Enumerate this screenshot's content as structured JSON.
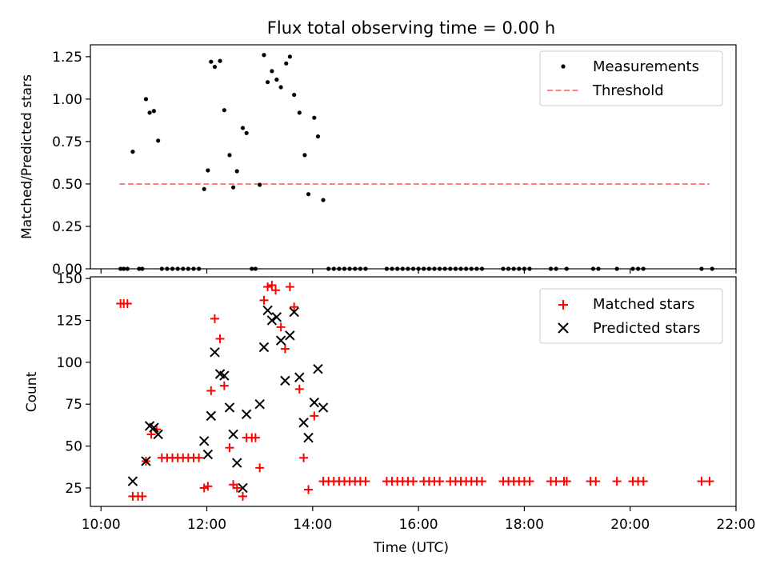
{
  "title": "Flux total observing time = 0.00 h",
  "chart_data": [
    {
      "type": "scatter",
      "panel": "top",
      "title": "Flux total observing time = 0.00 h",
      "xlabel": "",
      "ylabel": "Matched/Predicted stars",
      "x_unit": "time-of-day hours (UTC)",
      "xlim": [
        9.8,
        22.0
      ],
      "ylim": [
        0,
        1.32
      ],
      "yticks": [
        0.0,
        0.25,
        0.5,
        0.75,
        1.0,
        1.25
      ],
      "ytick_labels": [
        "0.00",
        "0.25",
        "0.50",
        "0.75",
        "1.00",
        "1.25"
      ],
      "legend_position": "top-right",
      "series": [
        {
          "name": "Measurements",
          "marker": "dot",
          "color": "#000000",
          "points": [
            [
              10.37,
              0
            ],
            [
              10.43,
              0
            ],
            [
              10.5,
              0
            ],
            [
              10.6,
              0.69
            ],
            [
              10.72,
              0
            ],
            [
              10.78,
              0
            ],
            [
              10.85,
              1.0
            ],
            [
              10.92,
              0.92
            ],
            [
              11.0,
              0.93
            ],
            [
              11.08,
              0.755
            ],
            [
              11.15,
              0
            ],
            [
              11.25,
              0
            ],
            [
              11.35,
              0
            ],
            [
              11.45,
              0
            ],
            [
              11.55,
              0
            ],
            [
              11.65,
              0
            ],
            [
              11.75,
              0
            ],
            [
              11.85,
              0
            ],
            [
              11.95,
              0.47
            ],
            [
              12.02,
              0.58
            ],
            [
              12.08,
              1.22
            ],
            [
              12.15,
              1.19
            ],
            [
              12.25,
              1.225
            ],
            [
              12.33,
              0.935
            ],
            [
              12.43,
              0.67
            ],
            [
              12.5,
              0.48
            ],
            [
              12.57,
              0.575
            ],
            [
              12.68,
              0.83
            ],
            [
              12.75,
              0.8
            ],
            [
              12.85,
              0
            ],
            [
              12.92,
              0
            ],
            [
              13.0,
              0.495
            ],
            [
              13.08,
              1.26
            ],
            [
              13.15,
              1.1
            ],
            [
              13.23,
              1.165
            ],
            [
              13.32,
              1.115
            ],
            [
              13.4,
              1.07
            ],
            [
              13.5,
              1.21
            ],
            [
              13.57,
              1.25
            ],
            [
              13.65,
              1.025
            ],
            [
              13.75,
              0.92
            ],
            [
              13.85,
              0.67
            ],
            [
              13.92,
              0.44
            ],
            [
              14.03,
              0.89
            ],
            [
              14.1,
              0.78
            ],
            [
              14.2,
              0.405
            ],
            [
              14.3,
              0
            ],
            [
              14.4,
              0
            ],
            [
              14.5,
              0
            ],
            [
              14.6,
              0
            ],
            [
              14.7,
              0
            ],
            [
              14.8,
              0
            ],
            [
              14.9,
              0
            ],
            [
              15.0,
              0
            ],
            [
              15.4,
              0
            ],
            [
              15.5,
              0
            ],
            [
              15.6,
              0
            ],
            [
              15.7,
              0
            ],
            [
              15.8,
              0
            ],
            [
              15.9,
              0
            ],
            [
              16.0,
              0
            ],
            [
              16.1,
              0
            ],
            [
              16.2,
              0
            ],
            [
              16.3,
              0
            ],
            [
              16.4,
              0
            ],
            [
              16.5,
              0
            ],
            [
              16.6,
              0
            ],
            [
              16.7,
              0
            ],
            [
              16.8,
              0
            ],
            [
              16.9,
              0
            ],
            [
              17.0,
              0
            ],
            [
              17.1,
              0
            ],
            [
              17.2,
              0
            ],
            [
              17.6,
              0
            ],
            [
              17.7,
              0
            ],
            [
              17.8,
              0
            ],
            [
              17.9,
              0
            ],
            [
              18.0,
              0
            ],
            [
              18.1,
              0
            ],
            [
              18.5,
              0
            ],
            [
              18.6,
              0
            ],
            [
              18.8,
              0
            ],
            [
              19.3,
              0
            ],
            [
              19.4,
              0
            ],
            [
              19.75,
              0
            ],
            [
              20.05,
              0
            ],
            [
              20.15,
              0
            ],
            [
              20.25,
              0
            ],
            [
              21.35,
              0
            ],
            [
              21.55,
              0
            ]
          ]
        },
        {
          "name": "Threshold",
          "style": "dashed",
          "color": "#ff7f7f",
          "points": [
            [
              10.35,
              0.5
            ],
            [
              21.5,
              0.5
            ]
          ]
        }
      ]
    },
    {
      "type": "scatter",
      "panel": "bottom",
      "xlabel": "Time (UTC)",
      "ylabel": "Count",
      "x_unit": "time-of-day hours (UTC)",
      "xlim": [
        9.8,
        22.0
      ],
      "ylim": [
        14,
        151
      ],
      "xticks": [
        10,
        12,
        14,
        16,
        18,
        20,
        22
      ],
      "xtick_labels": [
        "10:00",
        "12:00",
        "14:00",
        "16:00",
        "18:00",
        "20:00",
        "22:00"
      ],
      "yticks": [
        25,
        50,
        75,
        100,
        125,
        150
      ],
      "ytick_labels": [
        "25",
        "50",
        "75",
        "100",
        "125",
        "150"
      ],
      "legend_position": "top-right",
      "series": [
        {
          "name": "Matched stars",
          "marker": "plus",
          "color": "#ff0000",
          "points": [
            [
              10.37,
              135
            ],
            [
              10.43,
              135
            ],
            [
              10.5,
              135
            ],
            [
              10.6,
              20
            ],
            [
              10.7,
              20
            ],
            [
              10.78,
              20
            ],
            [
              10.85,
              41
            ],
            [
              10.95,
              57
            ],
            [
              11.05,
              60
            ],
            [
              11.15,
              43
            ],
            [
              11.25,
              43
            ],
            [
              11.35,
              43
            ],
            [
              11.45,
              43
            ],
            [
              11.55,
              43
            ],
            [
              11.65,
              43
            ],
            [
              11.75,
              43
            ],
            [
              11.85,
              43
            ],
            [
              11.95,
              25
            ],
            [
              12.02,
              26
            ],
            [
              12.08,
              83
            ],
            [
              12.15,
              126
            ],
            [
              12.25,
              114
            ],
            [
              12.33,
              86
            ],
            [
              12.43,
              49
            ],
            [
              12.5,
              27
            ],
            [
              12.57,
              25
            ],
            [
              12.68,
              20
            ],
            [
              12.75,
              55
            ],
            [
              12.85,
              55
            ],
            [
              12.92,
              55
            ],
            [
              13.0,
              37
            ],
            [
              13.08,
              137
            ],
            [
              13.15,
              145
            ],
            [
              13.23,
              146
            ],
            [
              13.3,
              143
            ],
            [
              13.4,
              121
            ],
            [
              13.48,
              108
            ],
            [
              13.57,
              145
            ],
            [
              13.65,
              133
            ],
            [
              13.75,
              84
            ],
            [
              13.83,
              43
            ],
            [
              13.92,
              24
            ],
            [
              14.03,
              68
            ],
            [
              14.2,
              29
            ],
            [
              14.3,
              29
            ],
            [
              14.4,
              29
            ],
            [
              14.5,
              29
            ],
            [
              14.6,
              29
            ],
            [
              14.7,
              29
            ],
            [
              14.8,
              29
            ],
            [
              14.9,
              29
            ],
            [
              15.0,
              29
            ],
            [
              15.4,
              29
            ],
            [
              15.5,
              29
            ],
            [
              15.6,
              29
            ],
            [
              15.7,
              29
            ],
            [
              15.8,
              29
            ],
            [
              15.9,
              29
            ],
            [
              16.1,
              29
            ],
            [
              16.2,
              29
            ],
            [
              16.3,
              29
            ],
            [
              16.4,
              29
            ],
            [
              16.6,
              29
            ],
            [
              16.7,
              29
            ],
            [
              16.8,
              29
            ],
            [
              16.9,
              29
            ],
            [
              17.0,
              29
            ],
            [
              17.1,
              29
            ],
            [
              17.2,
              29
            ],
            [
              17.6,
              29
            ],
            [
              17.7,
              29
            ],
            [
              17.8,
              29
            ],
            [
              17.9,
              29
            ],
            [
              18.0,
              29
            ],
            [
              18.1,
              29
            ],
            [
              18.5,
              29
            ],
            [
              18.6,
              29
            ],
            [
              18.75,
              29
            ],
            [
              18.8,
              29
            ],
            [
              19.25,
              29
            ],
            [
              19.35,
              29
            ],
            [
              19.75,
              29
            ],
            [
              20.05,
              29
            ],
            [
              20.15,
              29
            ],
            [
              20.25,
              29
            ],
            [
              21.35,
              29
            ],
            [
              21.5,
              29
            ]
          ]
        },
        {
          "name": "Predicted stars",
          "marker": "x",
          "color": "#000000",
          "points": [
            [
              10.6,
              29
            ],
            [
              10.85,
              41
            ],
            [
              10.92,
              62
            ],
            [
              11.0,
              61
            ],
            [
              11.08,
              57
            ],
            [
              11.95,
              53
            ],
            [
              12.02,
              45
            ],
            [
              12.08,
              68
            ],
            [
              12.15,
              106
            ],
            [
              12.25,
              93
            ],
            [
              12.33,
              92
            ],
            [
              12.43,
              73
            ],
            [
              12.5,
              57
            ],
            [
              12.57,
              40
            ],
            [
              12.68,
              25
            ],
            [
              12.75,
              69
            ],
            [
              13.0,
              75
            ],
            [
              13.08,
              109
            ],
            [
              13.15,
              131
            ],
            [
              13.23,
              125
            ],
            [
              13.32,
              127
            ],
            [
              13.4,
              113
            ],
            [
              13.48,
              89
            ],
            [
              13.57,
              116
            ],
            [
              13.65,
              130
            ],
            [
              13.75,
              91
            ],
            [
              13.83,
              64
            ],
            [
              13.92,
              55
            ],
            [
              14.03,
              76
            ],
            [
              14.1,
              96
            ],
            [
              14.2,
              73
            ]
          ]
        }
      ]
    }
  ]
}
